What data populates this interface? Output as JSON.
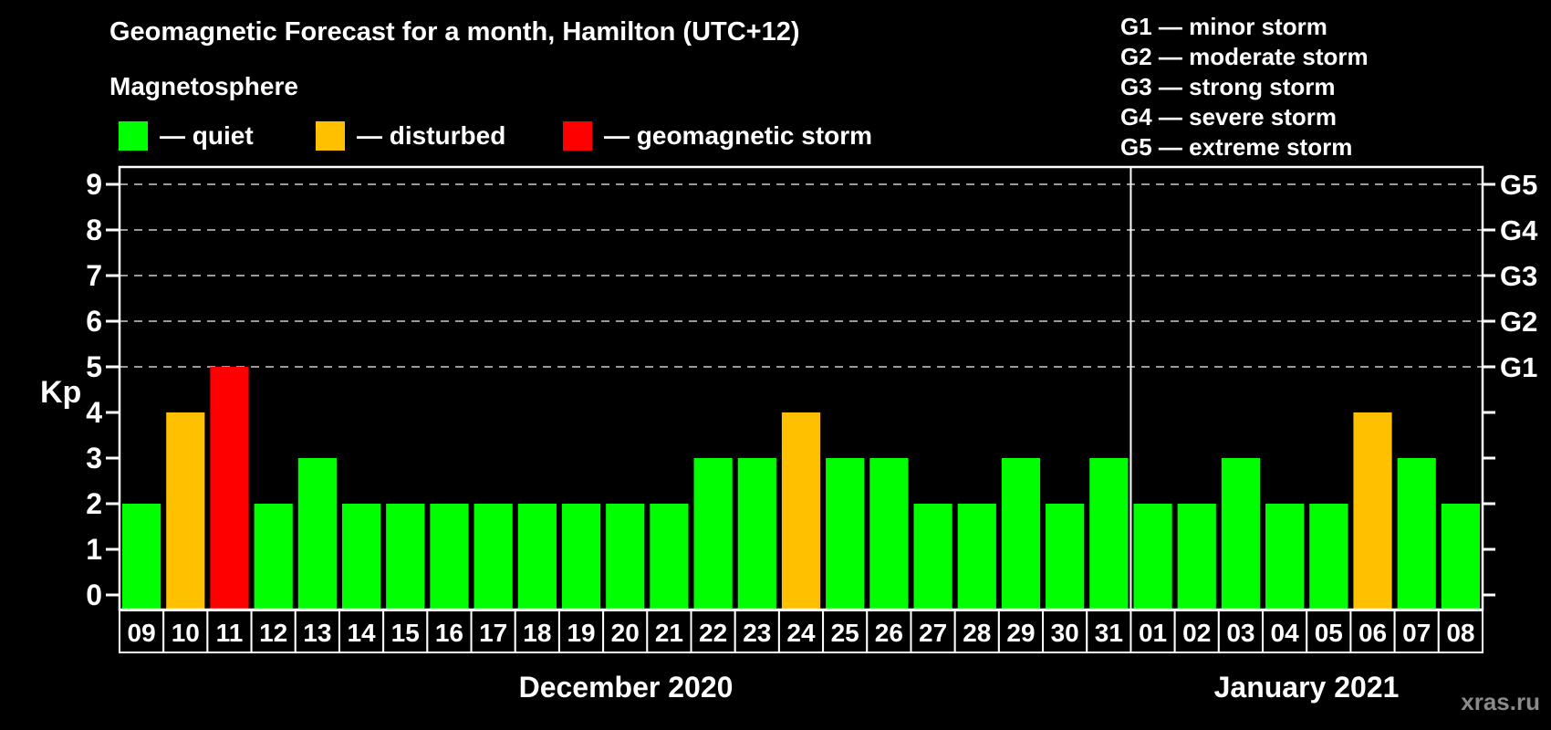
{
  "header": {
    "title": "Geomagnetic Forecast for a month, Hamilton (UTC+12)",
    "subtitle": "Magnetosphere"
  },
  "legend": {
    "items": [
      {
        "status": "quiet",
        "label": "— quiet",
        "color": "#00ff00"
      },
      {
        "status": "disturbed",
        "label": "— disturbed",
        "color": "#ffc000"
      },
      {
        "status": "storm",
        "label": "— geomagnetic storm",
        "color": "#ff0000"
      }
    ]
  },
  "g_scale_legend": {
    "lines": [
      "G1 — minor storm",
      "G2 — moderate storm",
      "G3 — strong storm",
      "G4 — severe storm",
      "G5 — extreme storm"
    ]
  },
  "chart_data": {
    "type": "bar",
    "ylabel": "Kp",
    "ylim": [
      0,
      9
    ],
    "yticks": [
      0,
      1,
      2,
      3,
      4,
      5,
      6,
      7,
      8,
      9
    ],
    "gridlines_at": [
      5,
      6,
      7,
      8,
      9
    ],
    "grid_style": "dashed",
    "right_axis_labels": [
      {
        "label": "G1",
        "kp": 5
      },
      {
        "label": "G2",
        "kp": 6
      },
      {
        "label": "G3",
        "kp": 7
      },
      {
        "label": "G4",
        "kp": 8
      },
      {
        "label": "G5",
        "kp": 9
      }
    ],
    "categories": [
      "09",
      "10",
      "11",
      "12",
      "13",
      "14",
      "15",
      "16",
      "17",
      "18",
      "19",
      "20",
      "21",
      "22",
      "23",
      "24",
      "25",
      "26",
      "27",
      "28",
      "29",
      "30",
      "31",
      "01",
      "02",
      "03",
      "04",
      "05",
      "06",
      "07",
      "08"
    ],
    "values": [
      2,
      4,
      5,
      2,
      3,
      2,
      2,
      2,
      2,
      2,
      2,
      2,
      2,
      3,
      3,
      4,
      3,
      3,
      2,
      2,
      3,
      2,
      3,
      2,
      2,
      3,
      2,
      2,
      4,
      3,
      2
    ],
    "statuses": [
      "quiet",
      "disturbed",
      "storm",
      "quiet",
      "quiet",
      "quiet",
      "quiet",
      "quiet",
      "quiet",
      "quiet",
      "quiet",
      "quiet",
      "quiet",
      "quiet",
      "quiet",
      "disturbed",
      "quiet",
      "quiet",
      "quiet",
      "quiet",
      "quiet",
      "quiet",
      "quiet",
      "quiet",
      "quiet",
      "quiet",
      "quiet",
      "quiet",
      "disturbed",
      "quiet",
      "quiet"
    ],
    "colors": {
      "quiet": "#00ff00",
      "disturbed": "#ffc000",
      "storm": "#ff0000"
    },
    "separator_after_index": 22,
    "months": [
      {
        "label": "December 2020",
        "span": [
          0,
          22
        ]
      },
      {
        "label": "January 2021",
        "span": [
          23,
          30
        ]
      }
    ],
    "axis_color": "#ffffff",
    "gridline_color": "#9a9a9a"
  },
  "watermark": "xras.ru"
}
